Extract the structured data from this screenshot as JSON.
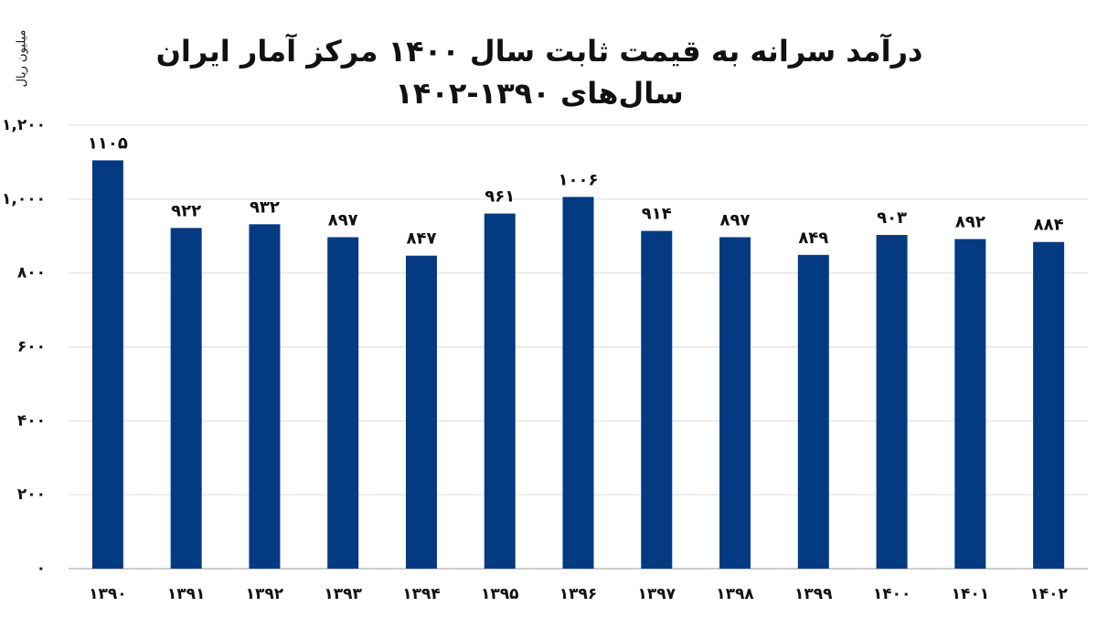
{
  "chart_data": {
    "type": "bar",
    "title": "درآمد سرانه به قیمت ثابت سال ۱۴۰۰ مرکز آمار ایران",
    "subtitle": "سال‌های ۱۳۹۰-۱۴۰۲",
    "y_label": "میلیون ریال",
    "categories": [
      "۱۳۹۰",
      "۱۳۹۱",
      "۱۳۹۲",
      "۱۳۹۳",
      "۱۳۹۴",
      "۱۳۹۵",
      "۱۳۹۶",
      "۱۳۹۷",
      "۱۳۹۸",
      "۱۳۹۹",
      "۱۴۰۰",
      "۱۴۰۱",
      "۱۴۰۲"
    ],
    "values": [
      1105,
      922,
      932,
      897,
      847,
      961,
      1006,
      914,
      897,
      849,
      903,
      892,
      884
    ],
    "value_labels": [
      "۱۱۰۵",
      "۹۲۲",
      "۹۳۲",
      "۸۹۷",
      "۸۴۷",
      "۹۶۱",
      "۱۰۰۶",
      "۹۱۴",
      "۸۹۷",
      "۸۴۹",
      "۹۰۳",
      "۸۹۲",
      "۸۸۴"
    ],
    "color": "#043a82",
    "ylim": [
      0,
      1200
    ],
    "yticks": [
      {
        "value": 0,
        "label": "۰"
      },
      {
        "value": 200,
        "label": "۲۰۰"
      },
      {
        "value": 400,
        "label": "۴۰۰"
      },
      {
        "value": 600,
        "label": "۶۰۰"
      },
      {
        "value": 800,
        "label": "۸۰۰"
      },
      {
        "value": 1000,
        "label": "۱,۰۰۰"
      },
      {
        "value": 1200,
        "label": "۱,۲۰۰"
      }
    ],
    "grid": true
  }
}
